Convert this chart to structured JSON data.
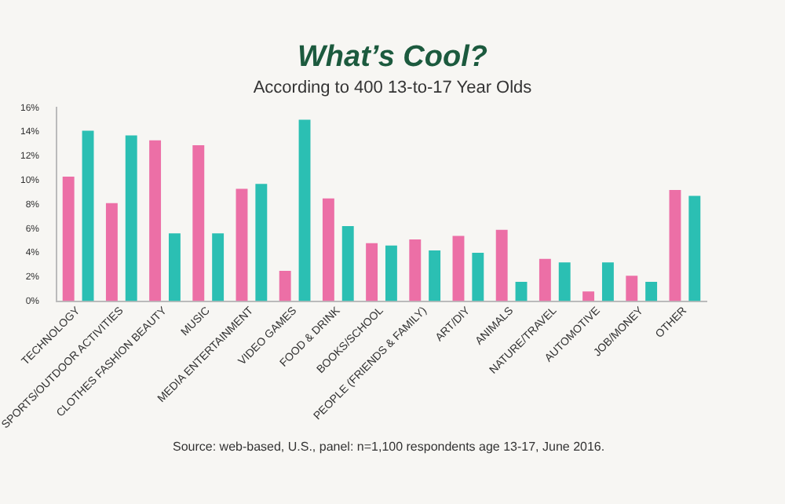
{
  "chart_data": {
    "type": "bar",
    "title": "What’s Cool?",
    "subtitle": "According to 400 13-to-17 Year Olds",
    "categories": [
      "TECHNOLOGY",
      "SPORTS/OUTDOOR ACTIVITIES",
      "CLOTHES FASHION BEAUTY",
      "MUSIC",
      "MEDIA ENTERTAINMENT",
      "VIDEO GAMES",
      "FOOD & DRINK",
      "BOOKS/SCHOOL",
      "PEOPLE (FRIENDS & FAMILY)",
      "ART/DIY",
      "ANIMALS",
      "NATURE/TRAVEL",
      "AUTOMOTIVE",
      "JOB/MONEY",
      "OTHER"
    ],
    "series": [
      {
        "color": "#ec6fa6",
        "values": [
          10.3,
          8.1,
          13.3,
          12.9,
          9.3,
          2.5,
          8.5,
          4.8,
          5.1,
          5.4,
          5.9,
          3.5,
          0.8,
          2.1,
          9.2
        ]
      },
      {
        "color": "#2bbfb3",
        "values": [
          14.1,
          13.7,
          5.6,
          5.6,
          9.7,
          15.0,
          6.2,
          4.6,
          4.2,
          4.0,
          1.6,
          3.2,
          3.2,
          1.6,
          8.7
        ]
      }
    ],
    "ylim": [
      0,
      16
    ],
    "yticks": [
      {
        "value": 0,
        "label": "0%"
      },
      {
        "value": 2,
        "label": "2%"
      },
      {
        "value": 4,
        "label": "4%"
      },
      {
        "value": 6,
        "label": "6%"
      },
      {
        "value": 8,
        "label": "8%"
      },
      {
        "value": 10,
        "label": "10%"
      },
      {
        "value": 12,
        "label": "12%"
      },
      {
        "value": 14,
        "label": "14%"
      },
      {
        "value": 16,
        "label": "16%"
      }
    ],
    "grid": false,
    "legend": false,
    "annotations": [
      "Source: web-based, U.S., panel: n=1,100 respondents age 13-17, June 2016."
    ]
  }
}
